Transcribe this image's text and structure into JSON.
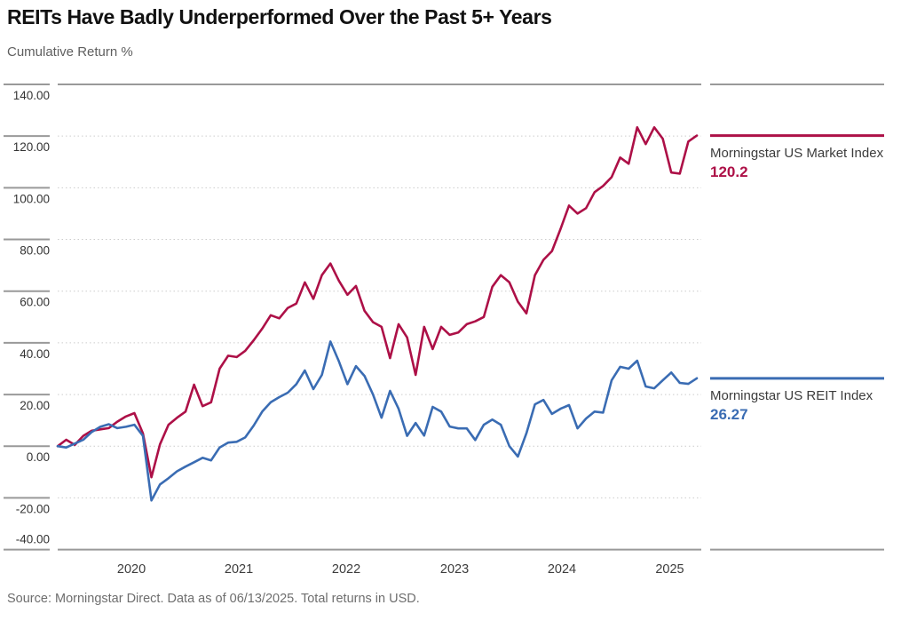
{
  "title": "REITs Have Badly Underperformed Over the Past 5+ Years",
  "subtitle": "Cumulative Return %",
  "footer": "Source: Morningstar Direct. Data as of 06/13/2025. Total returns in USD.",
  "colors": {
    "market_red": "#ad1047",
    "reit_blue": "#3a6cb3",
    "axis_line": "#999999",
    "gridline": "#cccccc",
    "tick_text": "#333333",
    "label_text": "#3c3c3c"
  },
  "legend": [
    {
      "name": "Morningstar US Market Index",
      "value": "120.2"
    },
    {
      "name": "Morningstar US REIT Index",
      "value": "26.27"
    }
  ],
  "chart_data": {
    "type": "line",
    "title": "REITs Have Badly Underperformed Over the Past 5+ Years",
    "ylabel": "Cumulative Return %",
    "ylim": [
      -40,
      140
    ],
    "grid": "horizontal-dotted",
    "legend_position": "right",
    "x_unit": "monthly points",
    "x_start": "2019-04",
    "x_end": "2025-06-13",
    "y_ticks": [
      {
        "label": "140.00",
        "v": 140
      },
      {
        "label": "120.00",
        "v": 120
      },
      {
        "label": "100.00",
        "v": 100
      },
      {
        "label": "80.00",
        "v": 80
      },
      {
        "label": "60.00",
        "v": 60
      },
      {
        "label": "40.00",
        "v": 40
      },
      {
        "label": "20.00",
        "v": 20
      },
      {
        "label": "0.00",
        "v": 0
      },
      {
        "label": "-20.00",
        "v": -20
      },
      {
        "label": "-40.00",
        "v": -40
      }
    ],
    "y_gridlines": [
      120,
      100,
      80,
      60,
      40,
      20,
      0,
      -20
    ],
    "x_ticks": [
      {
        "label": "2020",
        "f": 0.1145
      },
      {
        "label": "2021",
        "f": 0.2814
      },
      {
        "label": "2022",
        "f": 0.4483
      },
      {
        "label": "2023",
        "f": 0.6166
      },
      {
        "label": "2024",
        "f": 0.7834
      },
      {
        "label": "2025",
        "f": 0.951
      }
    ],
    "series": [
      {
        "name": "Morningstar US Market Index",
        "color_key": "market_red",
        "final_value": 120.2,
        "values": [
          0,
          2.5,
          0.5,
          4,
          6,
          6.5,
          7,
          9.5,
          11.5,
          12.8,
          5,
          -12,
          0.7,
          8.3,
          11,
          13.4,
          23.8,
          15.5,
          17,
          30,
          35,
          34.5,
          36.9,
          41,
          45.5,
          50.7,
          49.5,
          53.5,
          55.2,
          63.4,
          57,
          66.2,
          70.7,
          64,
          58.6,
          62,
          52.4,
          48,
          46.2,
          34.1,
          47.2,
          42.1,
          27.6,
          46.2,
          37.6,
          46.2,
          43.1,
          44,
          47.2,
          48.3,
          50,
          61.7,
          66.2,
          63.4,
          55.9,
          51.4,
          66.2,
          72.1,
          75.5,
          84,
          93.1,
          90,
          92.1,
          98.3,
          100.7,
          104.1,
          111.7,
          109.3,
          123.4,
          116.9,
          123.4,
          119,
          105.9,
          105.5,
          117.9,
          120.2
        ]
      },
      {
        "name": "Morningstar US REIT Index",
        "color_key": "reit_blue",
        "final_value": 26.27,
        "values": [
          0,
          -0.5,
          1,
          2.5,
          5.5,
          7.5,
          8.5,
          7,
          7.5,
          8.3,
          4,
          -21,
          -14.8,
          -12.4,
          -9.7,
          -7.9,
          -6.2,
          -4.5,
          -5.5,
          -0.5,
          1.4,
          1.7,
          3.4,
          8,
          13.4,
          17,
          19,
          20.7,
          24,
          29.3,
          22.1,
          27.6,
          40.5,
          32.8,
          24,
          31,
          27.2,
          20,
          11,
          21.4,
          14.5,
          4,
          9,
          4.1,
          15.2,
          13.4,
          7.6,
          6.9,
          6.9,
          2.4,
          8.3,
          10.3,
          8.3,
          0,
          -4,
          5,
          16.2,
          17.9,
          12.5,
          14.5,
          15.9,
          6.9,
          10.7,
          13.4,
          13,
          25.5,
          30.7,
          30,
          33.1,
          23.1,
          22.4,
          25.5,
          28.5,
          24.5,
          24.1,
          26.27
        ]
      }
    ]
  }
}
